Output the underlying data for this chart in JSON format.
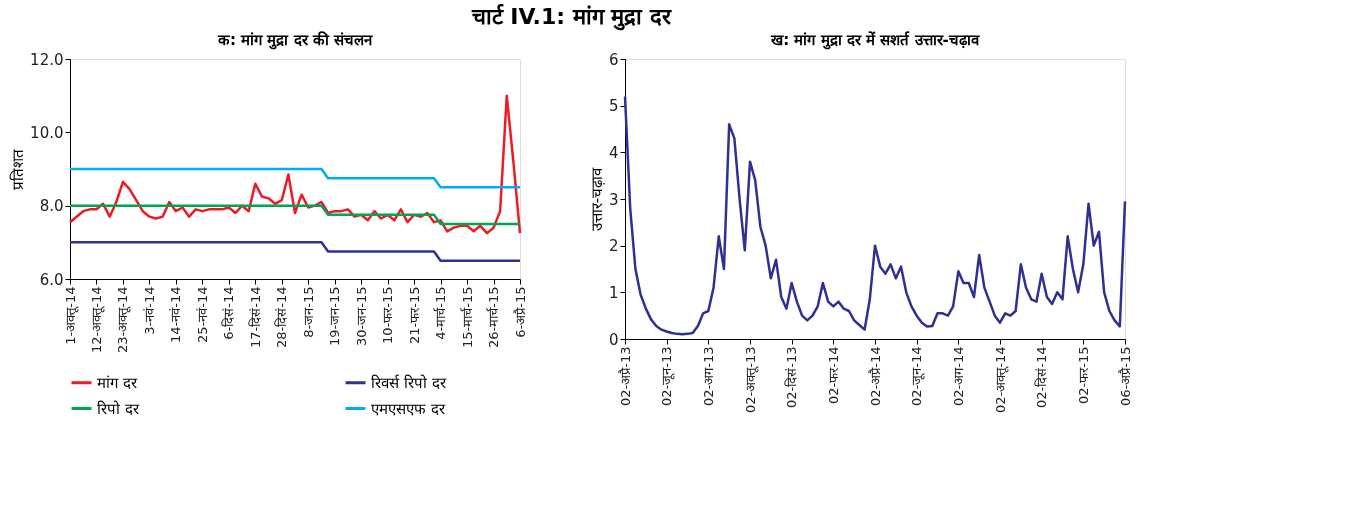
{
  "chart_data": [
    {
      "type": "line",
      "title": "क: मांग मुद्रा दर की संचलन",
      "ylabel": "प्रतिशत",
      "annotations": [
        "चार्ट IV.1: मांग मुद्रा दर"
      ],
      "categories": [
        "1-अक्तू-14",
        null,
        null,
        null,
        "12-अक्तू-14",
        null,
        null,
        null,
        "23-अक्तू-14",
        null,
        null,
        null,
        "3-नवं-14",
        null,
        null,
        null,
        "14-नवं-14",
        null,
        null,
        null,
        "25-नवं-14",
        null,
        null,
        null,
        "6-दिसं-14",
        null,
        null,
        null,
        "17-दिसं-14",
        null,
        null,
        null,
        "28-दिसं-14",
        null,
        null,
        null,
        "8-जन-15",
        null,
        null,
        null,
        "19-जन-15",
        null,
        null,
        null,
        "30-जन-15",
        null,
        null,
        null,
        "10-फर-15",
        null,
        null,
        null,
        "21-फर-15",
        null,
        null,
        null,
        "4-मार्च-15",
        null,
        null,
        null,
        "15-मार्च-15",
        null,
        null,
        null,
        "26-मार्च-15",
        null,
        null,
        null,
        "6-अप्रै-15"
      ],
      "ylim": [
        6,
        12
      ],
      "yticks": [
        {
          "value": 6,
          "label": "6.0"
        },
        {
          "value": 8,
          "label": "8.0"
        },
        {
          "value": 10,
          "label": "10.0"
        },
        {
          "value": 12,
          "label": "12.0"
        }
      ],
      "grid": false,
      "legend": "bottom",
      "line_style": "solid",
      "marker": "none",
      "series": [
        {
          "name": "मांग दर",
          "color": "#ed1c24",
          "values": [
            7.55,
            7.7,
            7.85,
            7.9,
            7.9,
            8.05,
            7.7,
            8.1,
            8.65,
            8.45,
            8.15,
            7.85,
            7.7,
            7.65,
            7.7,
            8.1,
            7.85,
            7.95,
            7.7,
            7.9,
            7.85,
            7.9,
            7.9,
            7.9,
            7.95,
            7.8,
            8.0,
            7.85,
            8.6,
            8.25,
            8.2,
            8.05,
            8.15,
            8.85,
            7.8,
            8.3,
            7.95,
            8.0,
            8.1,
            7.8,
            7.85,
            7.85,
            7.9,
            7.7,
            7.75,
            7.6,
            7.85,
            7.65,
            7.75,
            7.6,
            7.9,
            7.55,
            7.75,
            7.7,
            7.8,
            7.55,
            7.6,
            7.3,
            7.4,
            7.45,
            7.45,
            7.3,
            7.45,
            7.25,
            7.4,
            7.85,
            11.0,
            9.2,
            7.25
          ]
        },
        {
          "name": "रिवर्स रिपो दर",
          "color": "#2e3192",
          "values": [
            7,
            7,
            7,
            7,
            7,
            7,
            7,
            7,
            7,
            7,
            7,
            7,
            7,
            7,
            7,
            7,
            7,
            7,
            7,
            7,
            7,
            7,
            7,
            7,
            7,
            7,
            7,
            7,
            7,
            7,
            7,
            7,
            7,
            7,
            7,
            7,
            7,
            7,
            7,
            6.75,
            6.75,
            6.75,
            6.75,
            6.75,
            6.75,
            6.75,
            6.75,
            6.75,
            6.75,
            6.75,
            6.75,
            6.75,
            6.75,
            6.75,
            6.75,
            6.75,
            6.5,
            6.5,
            6.5,
            6.5,
            6.5,
            6.5,
            6.5,
            6.5,
            6.5,
            6.5,
            6.5,
            6.5,
            6.5
          ]
        },
        {
          "name": "रिपो दर",
          "color": "#00a651",
          "values": [
            8,
            8,
            8,
            8,
            8,
            8,
            8,
            8,
            8,
            8,
            8,
            8,
            8,
            8,
            8,
            8,
            8,
            8,
            8,
            8,
            8,
            8,
            8,
            8,
            8,
            8,
            8,
            8,
            8,
            8,
            8,
            8,
            8,
            8,
            8,
            8,
            8,
            8,
            8,
            7.75,
            7.75,
            7.75,
            7.75,
            7.75,
            7.75,
            7.75,
            7.75,
            7.75,
            7.75,
            7.75,
            7.75,
            7.75,
            7.75,
            7.75,
            7.75,
            7.75,
            7.5,
            7.5,
            7.5,
            7.5,
            7.5,
            7.5,
            7.5,
            7.5,
            7.5,
            7.5,
            7.5,
            7.5,
            7.5
          ]
        },
        {
          "name": "एमएसएफ दर",
          "color": "#00aeef",
          "values": [
            9,
            9,
            9,
            9,
            9,
            9,
            9,
            9,
            9,
            9,
            9,
            9,
            9,
            9,
            9,
            9,
            9,
            9,
            9,
            9,
            9,
            9,
            9,
            9,
            9,
            9,
            9,
            9,
            9,
            9,
            9,
            9,
            9,
            9,
            9,
            9,
            9,
            9,
            9,
            8.75,
            8.75,
            8.75,
            8.75,
            8.75,
            8.75,
            8.75,
            8.75,
            8.75,
            8.75,
            8.75,
            8.75,
            8.75,
            8.75,
            8.75,
            8.75,
            8.75,
            8.5,
            8.5,
            8.5,
            8.5,
            8.5,
            8.5,
            8.5,
            8.5,
            8.5,
            8.5,
            8.5,
            8.5,
            8.5
          ]
        }
      ]
    },
    {
      "type": "line",
      "title": "ख: मांग मुद्रा दर में सशर्त उत्तार-चढ़ाव",
      "ylabel": "उत्तार-चढ़ाव",
      "categories": [
        "02-अप्रै-13",
        null,
        null,
        null,
        null,
        null,
        null,
        null,
        "02-जून-13",
        null,
        null,
        null,
        null,
        null,
        null,
        null,
        "02-अग-13",
        null,
        null,
        null,
        null,
        null,
        null,
        null,
        "02-अक्तू-13",
        null,
        null,
        null,
        null,
        null,
        null,
        null,
        "02-दिसं-13",
        null,
        null,
        null,
        null,
        null,
        null,
        null,
        "02-फर-14",
        null,
        null,
        null,
        null,
        null,
        null,
        null,
        "02-अप्रै-14",
        null,
        null,
        null,
        null,
        null,
        null,
        null,
        "02-जून-14",
        null,
        null,
        null,
        null,
        null,
        null,
        null,
        "02-अग-14",
        null,
        null,
        null,
        null,
        null,
        null,
        null,
        "02-अक्तू-14",
        null,
        null,
        null,
        null,
        null,
        null,
        null,
        "02-दिसं-14",
        null,
        null,
        null,
        null,
        null,
        null,
        null,
        "02-फर-15",
        null,
        null,
        null,
        null,
        null,
        null,
        null,
        "06-अप्रै-15"
      ],
      "ylim": [
        0,
        6
      ],
      "yticks": [
        0,
        1,
        2,
        3,
        4,
        5,
        6
      ],
      "grid": false,
      "line_style": "solid",
      "marker": "none",
      "series": [
        {
          "color": "#2e3192",
          "values": [
            5.2,
            2.8,
            1.5,
            0.95,
            0.65,
            0.42,
            0.28,
            0.2,
            0.16,
            0.13,
            0.11,
            0.1,
            0.11,
            0.13,
            0.28,
            0.55,
            0.6,
            1.1,
            2.2,
            1.5,
            4.6,
            4.3,
            3.0,
            1.9,
            3.8,
            3.4,
            2.4,
            2.0,
            1.3,
            1.7,
            0.9,
            0.65,
            1.2,
            0.8,
            0.5,
            0.4,
            0.5,
            0.7,
            1.2,
            0.8,
            0.7,
            0.8,
            0.65,
            0.6,
            0.4,
            0.3,
            0.2,
            0.85,
            2.0,
            1.55,
            1.4,
            1.6,
            1.3,
            1.55,
            1.0,
            0.7,
            0.5,
            0.35,
            0.27,
            0.28,
            0.55,
            0.55,
            0.5,
            0.7,
            1.45,
            1.2,
            1.2,
            0.9,
            1.8,
            1.1,
            0.8,
            0.5,
            0.35,
            0.55,
            0.5,
            0.6,
            1.6,
            1.1,
            0.85,
            0.8,
            1.4,
            0.9,
            0.75,
            1.0,
            0.85,
            2.2,
            1.5,
            1.0,
            1.6,
            2.9,
            2.0,
            2.3,
            1.0,
            0.6,
            0.4,
            0.27,
            2.95
          ]
        }
      ]
    }
  ]
}
